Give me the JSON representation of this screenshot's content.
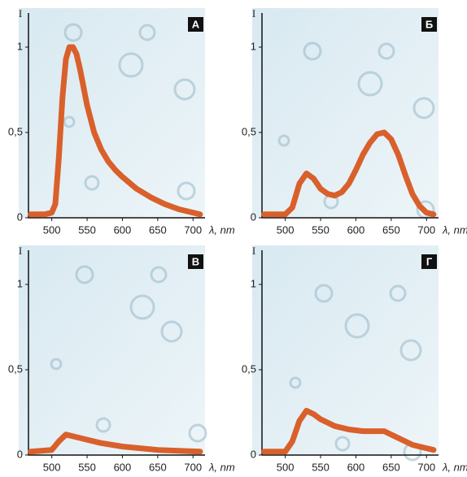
{
  "chart_data": [
    {
      "type": "line",
      "label": "А",
      "y_label": "I",
      "x_label": "λ, nm",
      "color": "#d9602b",
      "x": [
        470,
        480,
        490,
        500,
        505,
        510,
        515,
        520,
        525,
        530,
        535,
        540,
        550,
        560,
        570,
        580,
        590,
        600,
        620,
        640,
        660,
        680,
        700,
        710
      ],
      "values": [
        0.02,
        0.02,
        0.02,
        0.03,
        0.08,
        0.35,
        0.7,
        0.93,
        1.0,
        1.0,
        0.96,
        0.87,
        0.66,
        0.5,
        0.4,
        0.33,
        0.28,
        0.24,
        0.17,
        0.12,
        0.08,
        0.05,
        0.03,
        0.02
      ],
      "xlim": [
        467,
        717
      ],
      "ylim": [
        0,
        1.2
      ],
      "xticks": [
        500,
        550,
        600,
        650,
        700
      ],
      "yticks": [
        0,
        {
          "value": 0.5,
          "label": "0,5"
        },
        1
      ]
    },
    {
      "type": "line",
      "label": "Б",
      "y_label": "I",
      "x_label": "λ, nm",
      "color": "#d9602b",
      "x": [
        470,
        500,
        510,
        520,
        530,
        540,
        550,
        560,
        570,
        580,
        590,
        600,
        610,
        620,
        630,
        640,
        650,
        660,
        670,
        680,
        690,
        700,
        710
      ],
      "values": [
        0.02,
        0.02,
        0.06,
        0.2,
        0.26,
        0.23,
        0.17,
        0.14,
        0.13,
        0.15,
        0.2,
        0.28,
        0.37,
        0.44,
        0.49,
        0.5,
        0.46,
        0.37,
        0.25,
        0.14,
        0.07,
        0.03,
        0.02
      ],
      "xlim": [
        467,
        717
      ],
      "ylim": [
        0,
        1.2
      ],
      "xticks": [
        500,
        550,
        600,
        650,
        700
      ],
      "yticks": [
        0,
        {
          "value": 0.5,
          "label": "0,5"
        },
        1
      ]
    },
    {
      "type": "line",
      "label": "В",
      "y_label": "I",
      "x_label": "λ, nm",
      "color": "#d9602b",
      "x": [
        470,
        500,
        510,
        520,
        530,
        550,
        570,
        600,
        650,
        710
      ],
      "values": [
        0.02,
        0.03,
        0.08,
        0.12,
        0.11,
        0.09,
        0.07,
        0.05,
        0.03,
        0.02
      ],
      "xlim": [
        467,
        717
      ],
      "ylim": [
        0,
        1.2
      ],
      "xticks": [
        500,
        550,
        600,
        650,
        700
      ],
      "yticks": [
        0,
        {
          "value": 0.5,
          "label": "0,5"
        },
        1
      ]
    },
    {
      "type": "line",
      "label": "Г",
      "y_label": "I",
      "x_label": "λ, nm",
      "color": "#d9602b",
      "x": [
        470,
        500,
        510,
        520,
        530,
        540,
        550,
        570,
        590,
        610,
        630,
        640,
        660,
        680,
        700,
        710
      ],
      "values": [
        0.02,
        0.02,
        0.08,
        0.2,
        0.26,
        0.24,
        0.21,
        0.17,
        0.15,
        0.14,
        0.14,
        0.14,
        0.1,
        0.06,
        0.04,
        0.03
      ],
      "xlim": [
        467,
        717
      ],
      "ylim": [
        0,
        1.2
      ],
      "xticks": [
        500,
        550,
        600,
        650,
        700
      ],
      "yticks": [
        0,
        {
          "value": 0.5,
          "label": "0,5"
        },
        1
      ]
    }
  ]
}
